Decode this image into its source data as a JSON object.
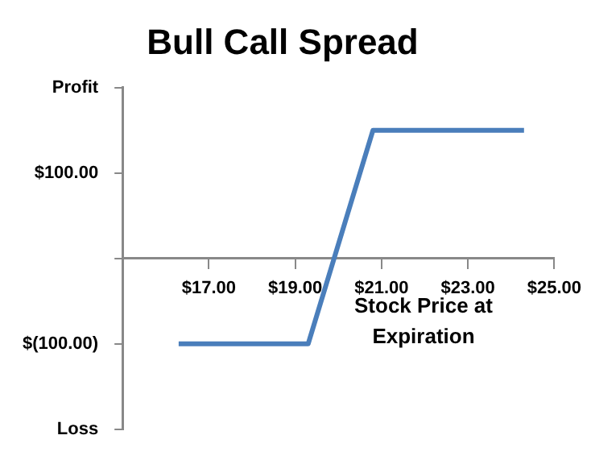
{
  "chart_data": {
    "type": "line",
    "title": "Bull Call Spread",
    "xlabel": "Stock Price at Expiration",
    "x": [
      16.3,
      19.3,
      20.8,
      24.3
    ],
    "series": [
      {
        "color": "#4a7ebb",
        "values": [
          -100,
          -100,
          150,
          150
        ]
      }
    ],
    "xlim": [
      15,
      25
    ],
    "xticks": [
      {
        "value": 15,
        "label": null
      },
      {
        "value": 17,
        "label": "$17.00"
      },
      {
        "value": 19,
        "label": "$19.00"
      },
      {
        "value": 21,
        "label": "$21.00"
      },
      {
        "value": 23,
        "label": "$23.00"
      },
      {
        "value": 25,
        "label": "$25.00"
      }
    ],
    "ylim": [
      -200,
      200
    ],
    "yticks": [
      {
        "value": -200,
        "label": "Loss"
      },
      {
        "value": -100,
        "label": "$(100.00)"
      },
      {
        "value": 0,
        "label": null
      },
      {
        "value": 100,
        "label": "$100.00"
      },
      {
        "value": 200,
        "label": "Profit"
      }
    ],
    "grid": false,
    "legend": false,
    "marker": "none",
    "line_style": "solid"
  }
}
